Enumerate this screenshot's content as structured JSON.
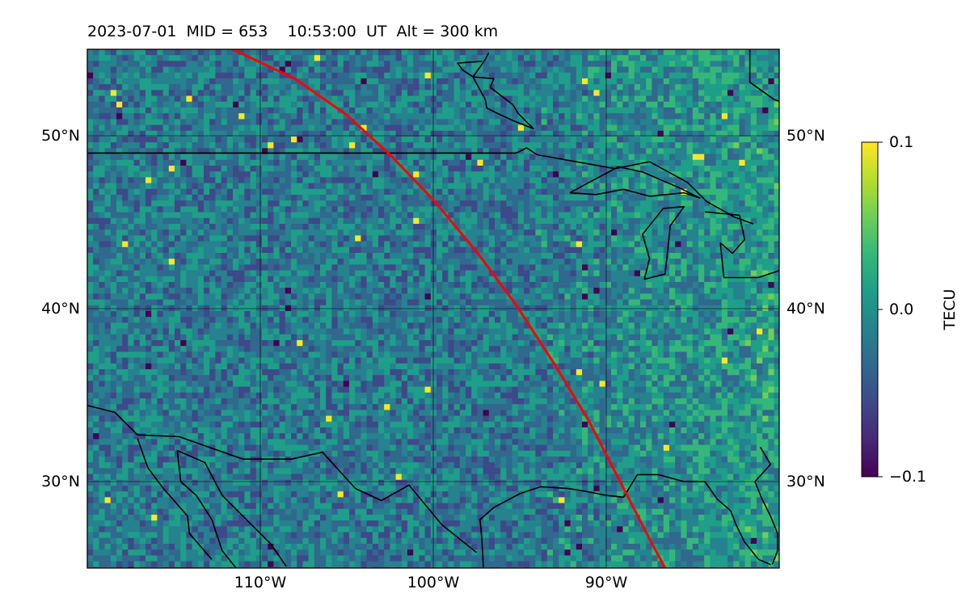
{
  "title": "2023-07-01  MID = 653    10:53:00  UT  Alt = 300 km",
  "map": {
    "lon_range": [
      -120,
      -80
    ],
    "lat_range": [
      25,
      55
    ],
    "lat_ticks": [
      {
        "value": 50,
        "label": "50°N"
      },
      {
        "value": 40,
        "label": "40°N"
      },
      {
        "value": 30,
        "label": "30°N"
      }
    ],
    "lon_ticks": [
      {
        "value": -110,
        "label": "110°W"
      },
      {
        "value": -100,
        "label": "100°W"
      },
      {
        "value": -90,
        "label": "90°W"
      }
    ],
    "background_color": "#2f8a8a",
    "coastline_color": "#000000",
    "grid": true,
    "track_color": "#ff0000",
    "track": [
      [
        -111.6,
        55
      ],
      [
        -108,
        53.3
      ],
      [
        -105,
        51.2
      ],
      [
        -102.5,
        48.9
      ],
      [
        -100,
        46.3
      ],
      [
        -97.5,
        43.3
      ],
      [
        -95.2,
        40.2
      ],
      [
        -93,
        36.8
      ],
      [
        -91,
        33.5
      ],
      [
        -89.2,
        30
      ],
      [
        -87.4,
        26.5
      ],
      [
        -86.6,
        25
      ]
    ],
    "features": {
      "us_canada_border": [
        [
          -120,
          49
        ],
        [
          -95.2,
          49
        ],
        [
          -94.6,
          49.3
        ],
        [
          -94,
          48.9
        ],
        [
          -91.2,
          48.4
        ],
        [
          -89.5,
          48.1
        ],
        [
          -87.5,
          48.5
        ],
        [
          -85.3,
          47.3
        ],
        [
          -84.2,
          46.2
        ],
        [
          -82.6,
          45.3
        ],
        [
          -81.5,
          44.9
        ]
      ],
      "hudson_bay": [
        [
          -96.8,
          54.8
        ],
        [
          -97,
          54.4
        ],
        [
          -97.7,
          53.4
        ],
        [
          -96.5,
          53.3
        ],
        [
          -96.7,
          52.8
        ],
        [
          -95.4,
          51.8
        ],
        [
          -95.1,
          51.3
        ],
        [
          -94.2,
          50.4
        ],
        [
          -95.2,
          50.8
        ],
        [
          -96.1,
          51.2
        ],
        [
          -96.9,
          51.6
        ],
        [
          -97,
          52.1
        ],
        [
          -97.7,
          53.4
        ],
        [
          -98.3,
          53.8
        ],
        [
          -98.6,
          54.2
        ],
        [
          -97.2,
          54.3
        ]
      ],
      "ne_quebec": [
        [
          -81.7,
          55
        ],
        [
          -81.7,
          53.1
        ],
        [
          -80.3,
          52.1
        ],
        [
          -80,
          52
        ]
      ],
      "lake_superior": [
        [
          -92.1,
          46.7
        ],
        [
          -90.6,
          46.6
        ],
        [
          -89,
          46.9
        ],
        [
          -87.5,
          46.5
        ],
        [
          -85.5,
          46.7
        ],
        [
          -84.6,
          46.4
        ],
        [
          -85.8,
          47
        ],
        [
          -87.9,
          47.9
        ],
        [
          -89.3,
          48.2
        ],
        [
          -91,
          47.3
        ],
        [
          -92.1,
          46.7
        ]
      ],
      "lake_michigan": [
        [
          -87.8,
          41.7
        ],
        [
          -87.5,
          42.9
        ],
        [
          -87.9,
          44.3
        ],
        [
          -86.7,
          45.8
        ],
        [
          -85.5,
          45.9
        ],
        [
          -86.3,
          44.8
        ],
        [
          -86.5,
          42.9
        ],
        [
          -86.6,
          42
        ],
        [
          -87.8,
          41.7
        ]
      ],
      "lake_huron_erie": [
        [
          -84.3,
          45.6
        ],
        [
          -82.3,
          45.4
        ],
        [
          -82,
          44
        ],
        [
          -82.7,
          43.2
        ],
        [
          -83.4,
          43.8
        ],
        [
          -83.2,
          41.8
        ],
        [
          -81.2,
          41.8
        ],
        [
          -80,
          42.2
        ]
      ],
      "gulf_coast": [
        [
          -97.1,
          25
        ],
        [
          -97.2,
          26.8
        ],
        [
          -97.3,
          27.8
        ],
        [
          -96.5,
          28.5
        ],
        [
          -95,
          29.3
        ],
        [
          -93.8,
          29.7
        ],
        [
          -92.2,
          29.6
        ],
        [
          -91,
          29.4
        ],
        [
          -90,
          29.2
        ],
        [
          -89,
          29.1
        ],
        [
          -88.2,
          30.4
        ],
        [
          -87,
          30.4
        ],
        [
          -85.5,
          30
        ],
        [
          -84.3,
          30
        ],
        [
          -83.6,
          29
        ],
        [
          -82.8,
          28.3
        ],
        [
          -82.5,
          27.5
        ],
        [
          -82,
          26.5
        ],
        [
          -81.2,
          25.5
        ],
        [
          -80.5,
          25.2
        ]
      ],
      "atlantic_coast": [
        [
          -81.1,
          32
        ],
        [
          -80.5,
          31
        ],
        [
          -81.4,
          30
        ],
        [
          -81,
          29
        ],
        [
          -80.5,
          28
        ],
        [
          -80.1,
          27
        ],
        [
          -80.1,
          26
        ],
        [
          -80.4,
          25.2
        ]
      ],
      "mexico_border": [
        [
          -120,
          34.4
        ],
        [
          -118.4,
          34
        ],
        [
          -117.1,
          32.7
        ],
        [
          -114.7,
          32.6
        ],
        [
          -111,
          31.3
        ],
        [
          -108.2,
          31.3
        ],
        [
          -106.4,
          31.7
        ],
        [
          -104.5,
          29.6
        ],
        [
          -103,
          28.9
        ],
        [
          -101.4,
          29.8
        ],
        [
          -99.5,
          27.5
        ],
        [
          -97.5,
          25.9
        ]
      ],
      "baja_peninsula": [
        [
          -117.1,
          32.5
        ],
        [
          -116.5,
          30.8
        ],
        [
          -115.6,
          29.6
        ],
        [
          -114.2,
          28
        ],
        [
          -114.1,
          27
        ],
        [
          -112.8,
          25.5
        ]
      ],
      "gulf_california": [
        [
          -114.8,
          31.8
        ],
        [
          -114.6,
          30
        ],
        [
          -113.7,
          29.2
        ],
        [
          -112.8,
          27.8
        ],
        [
          -112.2,
          26
        ],
        [
          -111.4,
          25
        ]
      ],
      "mexico_mainland": [
        [
          -114.8,
          31.8
        ],
        [
          -113.2,
          31.1
        ],
        [
          -112.2,
          29.2
        ],
        [
          -110.9,
          27.9
        ],
        [
          -109.4,
          26.4
        ],
        [
          -108.5,
          25.1
        ]
      ]
    }
  },
  "colorbar": {
    "min": -0.1,
    "max": 0.1,
    "ticks": [
      {
        "value": 0.1,
        "label": "0.1"
      },
      {
        "value": 0.0,
        "label": "0.0"
      },
      {
        "value": -0.1,
        "label": "−0.1"
      }
    ],
    "label": "TECU",
    "colors": [
      "#440154",
      "#482878",
      "#3e4989",
      "#31688e",
      "#26828e",
      "#1f9e89",
      "#35b779",
      "#6ece58",
      "#b5de2b",
      "#fde725"
    ]
  }
}
